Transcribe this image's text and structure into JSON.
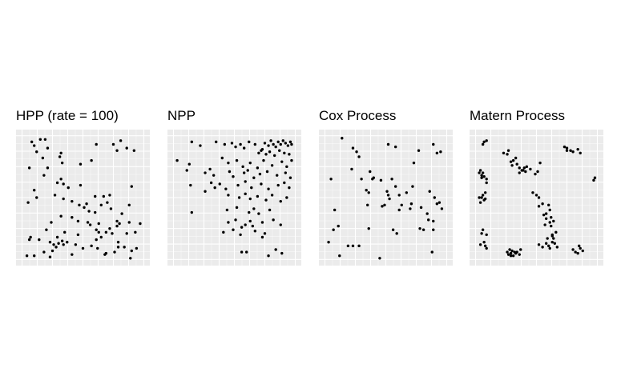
{
  "chart_data": [
    {
      "type": "scatter",
      "title": "HPP (rate = 100)",
      "xlim": [
        0,
        1
      ],
      "ylim": [
        0,
        1
      ],
      "grid": true,
      "colors": {
        "panel": "#ebebeb",
        "grid_major": "#ffffff",
        "point": "#000000"
      },
      "x": [
        0.08,
        0.1,
        0.15,
        0.19,
        0.12,
        0.21,
        0.32,
        0.61,
        0.75,
        0.78,
        0.81,
        0.86,
        0.92,
        0.17,
        0.31,
        0.33,
        0.57,
        0.48,
        0.06,
        0.21,
        0.1,
        0.29,
        0.32,
        0.34,
        0.38,
        0.9,
        0.05,
        0.12,
        0.48,
        0.27,
        0.34,
        0.6,
        0.67,
        0.72,
        0.41,
        0.47,
        0.51,
        0.53,
        0.55,
        0.6,
        0.65,
        0.73,
        0.7,
        0.82,
        0.88,
        0.78,
        0.88,
        0.63,
        0.24,
        0.32,
        0.41,
        0.46,
        0.54,
        0.56,
        0.69,
        0.78,
        0.8,
        0.97,
        0.07,
        0.14,
        0.2,
        0.29,
        0.35,
        0.46,
        0.61,
        0.63,
        0.65,
        0.72,
        0.74,
        0.86,
        0.93,
        0.06,
        0.23,
        0.26,
        0.3,
        0.33,
        0.37,
        0.44,
        0.5,
        0.57,
        0.62,
        0.76,
        0.79,
        0.84,
        0.9,
        0.25,
        0.28,
        0.69,
        0.79,
        0.04,
        0.1,
        0.18,
        0.23,
        0.34,
        0.41,
        0.68,
        0.89,
        0.94,
        0.61,
        0.18
      ],
      "y": [
        0.95,
        0.92,
        0.97,
        0.97,
        0.87,
        0.9,
        0.86,
        0.93,
        0.93,
        0.88,
        0.96,
        0.9,
        0.88,
        0.82,
        0.83,
        0.78,
        0.8,
        0.77,
        0.74,
        0.74,
        0.56,
        0.62,
        0.65,
        0.61,
        0.58,
        0.59,
        0.46,
        0.5,
        0.6,
        0.52,
        0.49,
        0.51,
        0.51,
        0.52,
        0.47,
        0.44,
        0.42,
        0.45,
        0.39,
        0.38,
        0.44,
        0.41,
        0.46,
        0.37,
        0.44,
        0.31,
        0.3,
        0.29,
        0.3,
        0.35,
        0.34,
        0.31,
        0.3,
        0.28,
        0.22,
        0.27,
        0.29,
        0.29,
        0.18,
        0.16,
        0.24,
        0.18,
        0.22,
        0.2,
        0.24,
        0.22,
        0.18,
        0.25,
        0.21,
        0.21,
        0.22,
        0.16,
        0.14,
        0.12,
        0.13,
        0.15,
        0.14,
        0.12,
        0.09,
        0.11,
        0.09,
        0.06,
        0.14,
        0.1,
        0.07,
        0.07,
        0.1,
        0.05,
        0.1,
        0.03,
        0.03,
        0.06,
        0.02,
        0.12,
        0.04,
        0.04,
        0.01,
        0.09,
        0.16,
        0.68
      ]
    },
    {
      "type": "scatter",
      "title": "NPP",
      "xlim": [
        0,
        1
      ],
      "ylim": [
        0,
        1
      ],
      "grid": true,
      "colors": {
        "panel": "#ebebeb",
        "grid_major": "#ffffff",
        "point": "#000000"
      },
      "x": [
        0.15,
        0.22,
        0.35,
        0.42,
        0.48,
        0.51,
        0.55,
        0.58,
        0.62,
        0.67,
        0.72,
        0.75,
        0.78,
        0.8,
        0.82,
        0.84,
        0.86,
        0.88,
        0.9,
        0.92,
        0.94,
        0.96,
        0.97,
        0.7,
        0.73,
        0.76,
        0.79,
        0.83,
        0.87,
        0.91,
        0.95,
        0.03,
        0.13,
        0.4,
        0.45,
        0.52,
        0.57,
        0.63,
        0.69,
        0.74,
        0.81,
        0.89,
        0.93,
        0.97,
        0.11,
        0.26,
        0.3,
        0.33,
        0.46,
        0.49,
        0.58,
        0.61,
        0.66,
        0.71,
        0.77,
        0.85,
        0.92,
        0.96,
        0.14,
        0.31,
        0.34,
        0.38,
        0.43,
        0.53,
        0.59,
        0.64,
        0.72,
        0.78,
        0.86,
        0.91,
        0.95,
        0.26,
        0.45,
        0.54,
        0.59,
        0.63,
        0.69,
        0.76,
        0.81,
        0.88,
        0.93,
        0.44,
        0.52,
        0.62,
        0.66,
        0.7,
        0.79,
        0.15,
        0.45,
        0.51,
        0.59,
        0.63,
        0.65,
        0.73,
        0.82,
        0.88,
        0.41,
        0.49,
        0.55,
        0.67,
        0.75,
        0.56,
        0.73,
        0.6,
        0.56,
        0.78,
        0.84,
        0.89
      ],
      "y": [
        0.95,
        0.92,
        0.95,
        0.93,
        0.94,
        0.91,
        0.93,
        0.9,
        0.95,
        0.93,
        0.88,
        0.94,
        0.92,
        0.96,
        0.93,
        0.91,
        0.95,
        0.93,
        0.96,
        0.94,
        0.92,
        0.95,
        0.93,
        0.86,
        0.89,
        0.85,
        0.87,
        0.84,
        0.88,
        0.86,
        0.85,
        0.8,
        0.77,
        0.82,
        0.78,
        0.8,
        0.75,
        0.78,
        0.74,
        0.8,
        0.76,
        0.79,
        0.75,
        0.8,
        0.72,
        0.7,
        0.73,
        0.68,
        0.71,
        0.67,
        0.7,
        0.72,
        0.66,
        0.69,
        0.71,
        0.68,
        0.7,
        0.66,
        0.6,
        0.62,
        0.58,
        0.61,
        0.57,
        0.6,
        0.63,
        0.58,
        0.61,
        0.57,
        0.6,
        0.62,
        0.58,
        0.55,
        0.52,
        0.5,
        0.53,
        0.49,
        0.51,
        0.48,
        0.52,
        0.47,
        0.5,
        0.4,
        0.42,
        0.38,
        0.41,
        0.37,
        0.4,
        0.38,
        0.3,
        0.32,
        0.28,
        0.31,
        0.27,
        0.3,
        0.32,
        0.28,
        0.22,
        0.24,
        0.2,
        0.23,
        0.21,
        0.26,
        0.18,
        0.06,
        0.06,
        0.03,
        0.08,
        0.05
      ]
    },
    {
      "type": "scatter",
      "title": "Cox Process",
      "xlim": [
        0,
        1
      ],
      "ylim": [
        0,
        1
      ],
      "grid": true,
      "colors": {
        "panel": "#ebebeb",
        "grid_major": "#ffffff",
        "point": "#000000"
      },
      "x": [
        0.14,
        0.23,
        0.26,
        0.28,
        0.52,
        0.58,
        0.77,
        0.89,
        0.95,
        0.92,
        0.73,
        0.22,
        0.37,
        0.4,
        0.05,
        0.3,
        0.39,
        0.46,
        0.55,
        0.58,
        0.34,
        0.36,
        0.51,
        0.52,
        0.53,
        0.61,
        0.67,
        0.72,
        0.86,
        0.9,
        0.92,
        0.96,
        0.08,
        0.35,
        0.47,
        0.49,
        0.61,
        0.63,
        0.7,
        0.71,
        0.79,
        0.84,
        0.89,
        0.85,
        0.94,
        0.11,
        0.07,
        0.03,
        0.36,
        0.56,
        0.59,
        0.78,
        0.81,
        0.89,
        0.19,
        0.23,
        0.28,
        0.12,
        0.45,
        0.88
      ],
      "y": [
        0.98,
        0.9,
        0.87,
        0.83,
        0.93,
        0.91,
        0.88,
        0.93,
        0.87,
        0.86,
        0.78,
        0.73,
        0.71,
        0.66,
        0.65,
        0.65,
        0.65,
        0.64,
        0.65,
        0.59,
        0.56,
        0.54,
        0.55,
        0.52,
        0.49,
        0.52,
        0.54,
        0.59,
        0.55,
        0.5,
        0.45,
        0.41,
        0.4,
        0.44,
        0.43,
        0.44,
        0.4,
        0.44,
        0.41,
        0.45,
        0.42,
        0.37,
        0.31,
        0.32,
        0.46,
        0.27,
        0.24,
        0.14,
        0.25,
        0.24,
        0.21,
        0.25,
        0.24,
        0.24,
        0.11,
        0.11,
        0.11,
        0.03,
        0.01,
        0.06
      ]
    },
    {
      "type": "scatter",
      "title": "Matern Process",
      "xlim": [
        0,
        1
      ],
      "ylim": [
        0,
        1
      ],
      "grid": true,
      "colors": {
        "panel": "#ebebeb",
        "grid_major": "#ffffff",
        "point": "#000000"
      },
      "x": [
        0.07,
        0.09,
        0.06,
        0.04,
        0.05,
        0.06,
        0.09,
        0.03,
        0.05,
        0.07,
        0.09,
        0.08,
        0.03,
        0.06,
        0.05,
        0.07,
        0.04,
        0.08,
        0.06,
        0.09,
        0.05,
        0.07,
        0.04,
        0.08,
        0.09,
        0.23,
        0.26,
        0.27,
        0.29,
        0.31,
        0.33,
        0.3,
        0.34,
        0.36,
        0.38,
        0.4,
        0.42,
        0.36,
        0.39,
        0.41,
        0.45,
        0.49,
        0.51,
        0.53,
        0.47,
        0.5,
        0.52,
        0.52,
        0.55,
        0.6,
        0.56,
        0.58,
        0.61,
        0.58,
        0.62,
        0.57,
        0.61,
        0.64,
        0.62,
        0.66,
        0.63,
        0.64,
        0.52,
        0.55,
        0.58,
        0.6,
        0.63,
        0.61,
        0.65,
        0.67,
        0.59,
        0.63,
        0.28,
        0.3,
        0.26,
        0.29,
        0.32,
        0.27,
        0.31,
        0.34,
        0.37,
        0.29,
        0.33,
        0.36,
        0.78,
        0.8,
        0.84,
        0.86,
        0.73,
        0.75,
        0.75,
        0.85,
        0.86,
        0.88,
        0.84,
        0.8,
        0.82,
        0.97,
        0.98
      ],
      "y": [
        0.95,
        0.96,
        0.93,
        0.72,
        0.68,
        0.7,
        0.65,
        0.7,
        0.66,
        0.67,
        0.62,
        0.54,
        0.5,
        0.52,
        0.5,
        0.48,
        0.46,
        0.49,
        0.24,
        0.2,
        0.21,
        0.14,
        0.12,
        0.11,
        0.09,
        0.86,
        0.85,
        0.88,
        0.79,
        0.8,
        0.82,
        0.76,
        0.77,
        0.74,
        0.72,
        0.74,
        0.75,
        0.7,
        0.72,
        0.71,
        0.73,
        0.69,
        0.71,
        0.78,
        0.54,
        0.52,
        0.5,
        0.43,
        0.45,
        0.44,
        0.36,
        0.37,
        0.4,
        0.33,
        0.34,
        0.28,
        0.3,
        0.31,
        0.27,
        0.22,
        0.19,
        0.17,
        0.12,
        0.1,
        0.13,
        0.11,
        0.14,
        0.09,
        0.13,
        0.1,
        0.17,
        0.2,
        0.08,
        0.07,
        0.06,
        0.05,
        0.06,
        0.04,
        0.03,
        0.06,
        0.08,
        0.03,
        0.05,
        0.04,
        0.88,
        0.87,
        0.89,
        0.86,
        0.91,
        0.88,
        0.9,
        0.11,
        0.09,
        0.07,
        0.05,
        0.08,
        0.06,
        0.64,
        0.66
      ]
    }
  ]
}
